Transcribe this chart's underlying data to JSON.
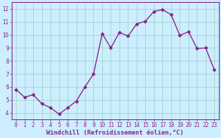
{
  "x": [
    0,
    1,
    2,
    3,
    4,
    5,
    6,
    7,
    8,
    9,
    10,
    11,
    12,
    13,
    14,
    15,
    16,
    17,
    18,
    19,
    20,
    21,
    22,
    23
  ],
  "y": [
    5.8,
    5.2,
    5.4,
    4.7,
    4.4,
    3.9,
    4.4,
    4.9,
    6.0,
    7.0,
    10.1,
    9.0,
    10.2,
    9.9,
    10.85,
    11.05,
    11.8,
    11.95,
    11.55,
    9.95,
    10.25,
    8.95,
    9.0,
    7.3
  ],
  "line_color": "#882288",
  "marker": "D",
  "marker_size": 2.5,
  "bg_color": "#cceeff",
  "grid_color": "#99ccbb",
  "xlabel": "Windchill (Refroidissement éolien,°C)",
  "xlabel_color": "#882288",
  "ylim": [
    3.5,
    12.5
  ],
  "xlim": [
    -0.5,
    23.5
  ],
  "yticks": [
    4,
    5,
    6,
    7,
    8,
    9,
    10,
    11,
    12
  ],
  "xticks": [
    0,
    1,
    2,
    3,
    4,
    5,
    6,
    7,
    8,
    9,
    10,
    11,
    12,
    13,
    14,
    15,
    16,
    17,
    18,
    19,
    20,
    21,
    22,
    23
  ],
  "tick_label_color": "#882288",
  "tick_label_fontsize": 5.5,
  "xlabel_fontsize": 6.5,
  "linewidth": 1.0
}
